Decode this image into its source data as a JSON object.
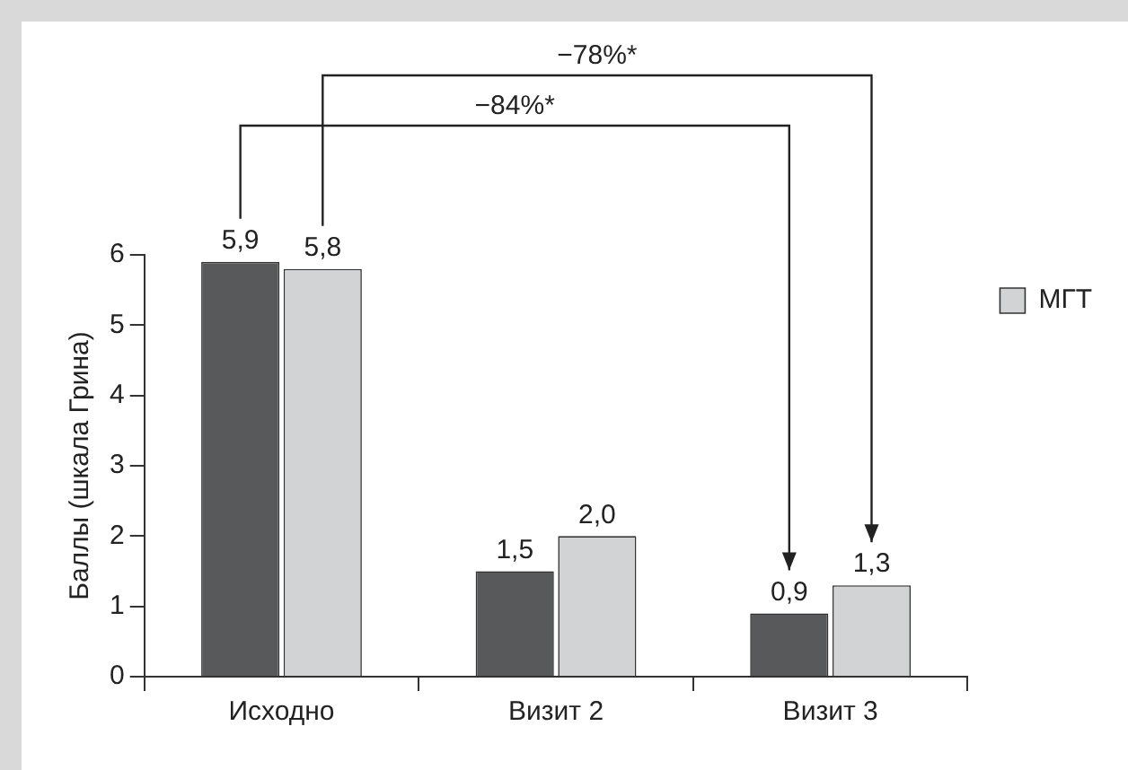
{
  "chart_data": {
    "type": "bar",
    "ylabel": "Баллы (шкала Грина)",
    "categories": [
      "Исходно",
      "Визит 2",
      "Визит 3"
    ],
    "series": [
      {
        "color": "#58595b",
        "values": [
          5.9,
          1.5,
          0.9
        ],
        "value_labels": [
          "5,9",
          "1,5",
          "0,9"
        ]
      },
      {
        "name": "МГТ",
        "color": "#d1d3d4",
        "values": [
          5.8,
          2.0,
          1.3
        ],
        "value_labels": [
          "5,8",
          "2,0",
          "1,3"
        ]
      }
    ],
    "ylim": [
      0,
      6
    ],
    "yticks": [
      0,
      1,
      2,
      3,
      4,
      5,
      6
    ],
    "grid": false,
    "legend": "right",
    "annotations": [
      "−78%*",
      "−84%*"
    ]
  }
}
